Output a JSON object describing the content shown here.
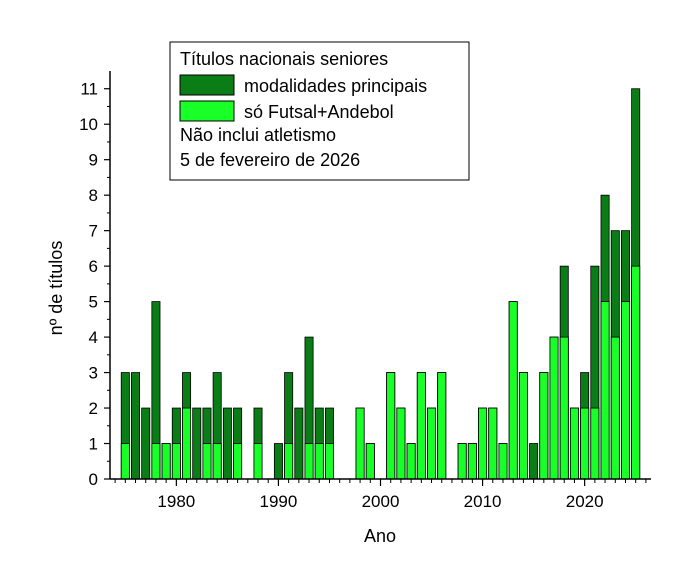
{
  "chart_data": {
    "type": "bar",
    "xlabel": "Ano",
    "ylabel": "nº de títulos",
    "xlim": [
      1973.5,
      2026.5
    ],
    "ylim": [
      0,
      11.5
    ],
    "x_ticks": [
      1980,
      1990,
      2000,
      2010,
      2020
    ],
    "y_ticks": [
      0,
      1,
      2,
      3,
      4,
      5,
      6,
      7,
      8,
      9,
      10,
      11
    ],
    "legend_position": "top-left",
    "legend": {
      "title": "Títulos nacionais seniores",
      "note1": "Não inclui atletismo",
      "note2": "5 de fevereiro de 2026"
    },
    "colors": {
      "total": "#0a7d17",
      "futsal_andebol": "#19ff28"
    },
    "years": [
      1975,
      1976,
      1977,
      1978,
      1979,
      1980,
      1981,
      1982,
      1983,
      1984,
      1985,
      1986,
      1987,
      1988,
      1989,
      1990,
      1991,
      1992,
      1993,
      1994,
      1995,
      1996,
      1997,
      1998,
      1999,
      2000,
      2001,
      2002,
      2003,
      2004,
      2005,
      2006,
      2007,
      2008,
      2009,
      2010,
      2011,
      2012,
      2013,
      2014,
      2015,
      2016,
      2017,
      2018,
      2019,
      2020,
      2021,
      2022,
      2023,
      2024,
      2025
    ],
    "series": [
      {
        "name": "modalidades principais",
        "color": "#0a7d17",
        "values": [
          3,
          3,
          2,
          5,
          1,
          2,
          3,
          2,
          2,
          3,
          2,
          2,
          0,
          2,
          0,
          1,
          3,
          2,
          4,
          2,
          2,
          0,
          0,
          2,
          1,
          0,
          3,
          2,
          1,
          3,
          2,
          3,
          0,
          1,
          1,
          2,
          2,
          1,
          5,
          3,
          1,
          3,
          4,
          6,
          2,
          3,
          6,
          8,
          7,
          7,
          11
        ]
      },
      {
        "name": "só Futsal+Andebol",
        "color": "#19ff28",
        "values": [
          1,
          0,
          0,
          1,
          1,
          1,
          2,
          0,
          1,
          1,
          0,
          1,
          0,
          1,
          0,
          0,
          1,
          0,
          1,
          1,
          1,
          0,
          0,
          2,
          1,
          0,
          3,
          2,
          1,
          3,
          2,
          3,
          0,
          1,
          1,
          2,
          2,
          1,
          5,
          3,
          0,
          3,
          4,
          4,
          2,
          2,
          2,
          5,
          4,
          5,
          6
        ]
      }
    ]
  }
}
